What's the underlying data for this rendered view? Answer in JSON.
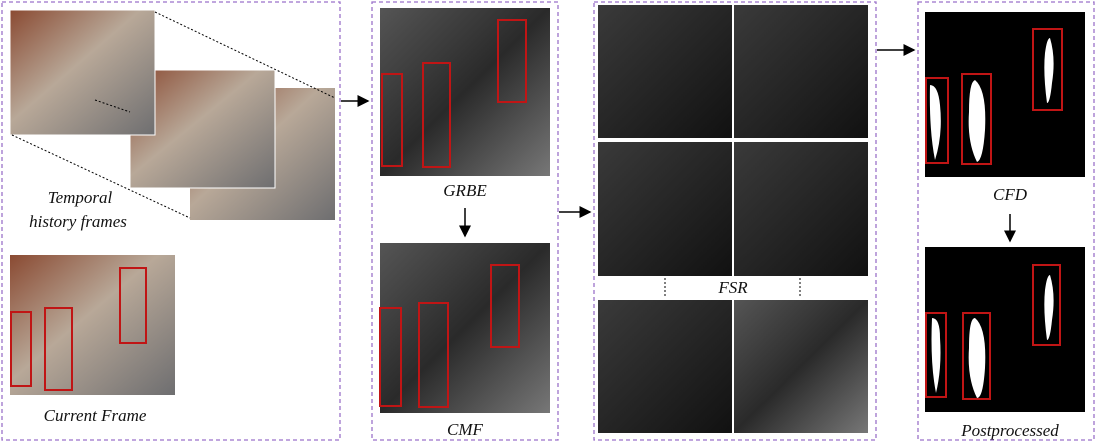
{
  "labels": {
    "history": [
      "Temporal",
      "history frames"
    ],
    "current": "Current Frame",
    "grbe": "GRBE",
    "cmf": "CMF",
    "fsr": "FSR",
    "cfd": "CFD",
    "post": "Postprocessed"
  }
}
